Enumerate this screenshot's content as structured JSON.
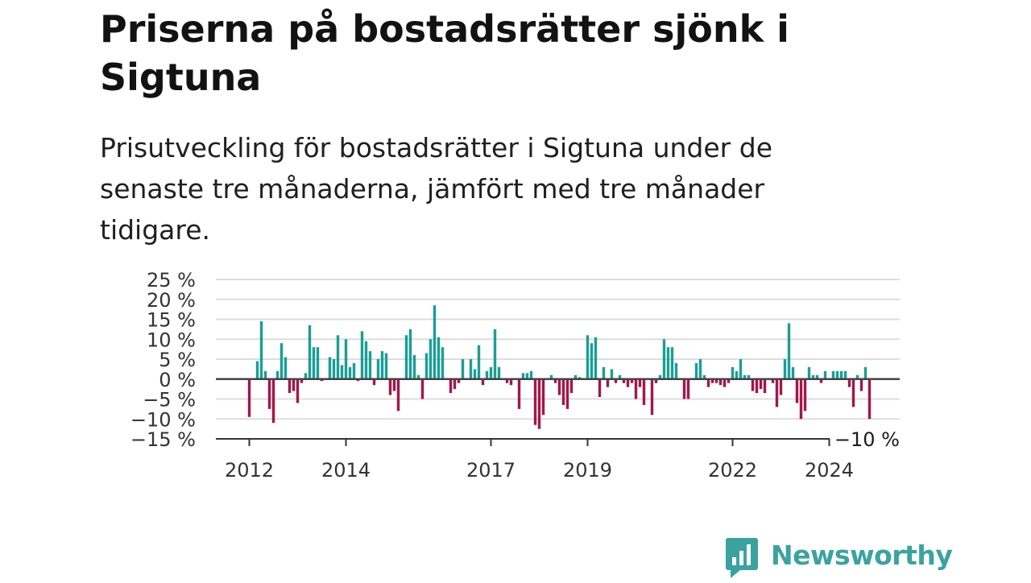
{
  "title": "Priserna på bostadsrätter sjönk i Sigtuna",
  "subtitle": "Prisutveckling för bostadsrätter i Sigtuna under de senaste tre månaderna, jämfört med tre månader tidigare.",
  "brand": {
    "name": "Newsworthy",
    "color": "#3aa3a0"
  },
  "chart_data": {
    "type": "bar",
    "x_unit": "month",
    "start": "2012-01",
    "ylim": [
      -15,
      25
    ],
    "y_ticks": [
      25,
      20,
      15,
      10,
      5,
      0,
      -5,
      -10,
      -15
    ],
    "y_tick_labels": [
      "25 %",
      "20 %",
      "15 %",
      "10 %",
      "5 %",
      "0 %",
      "−5 %",
      "−10 %",
      "−15 %"
    ],
    "x_ticks": [
      {
        "label": "2012",
        "month": "2012-01"
      },
      {
        "label": "2014",
        "month": "2014-01"
      },
      {
        "label": "2017",
        "month": "2017-01"
      },
      {
        "label": "2019",
        "month": "2019-01"
      },
      {
        "label": "2022",
        "month": "2022-01"
      },
      {
        "label": "2024",
        "month": "2024-01"
      }
    ],
    "grid": true,
    "colors": {
      "positive": "#1a9e96",
      "negative": "#a3164a",
      "zero_line": "#444444",
      "grid": "#dddddd"
    },
    "last_value_label": "−10 %",
    "values": [
      -9.5,
      0,
      4.5,
      14.5,
      2,
      -7.5,
      -11,
      2,
      9,
      5.5,
      -3.5,
      -3,
      -6,
      -1,
      1.5,
      13.5,
      8,
      8,
      -0.5,
      0,
      5.5,
      5,
      11,
      3.5,
      10,
      3,
      4,
      -0.5,
      12,
      9.5,
      7,
      -1.5,
      5,
      7,
      6.5,
      -4,
      -3,
      -8,
      0,
      11,
      12.5,
      6,
      1,
      -5,
      6.5,
      10,
      18.5,
      10.5,
      8,
      0,
      -3.5,
      -2.5,
      -1,
      5,
      0,
      5,
      2.5,
      8.5,
      -1.5,
      2,
      3,
      12.5,
      3,
      0,
      -1,
      -1.5,
      0,
      -7.5,
      1.5,
      1.5,
      2,
      -11.5,
      -12.5,
      -9,
      0,
      1,
      -1,
      -4,
      -6.5,
      -7.5,
      -3.5,
      1,
      0.5,
      0,
      11,
      9,
      10.5,
      -4.5,
      3,
      -2,
      2.5,
      -1,
      1,
      -1,
      -2,
      -1,
      -5,
      -2,
      -6.5,
      0,
      -9,
      -1,
      1,
      10,
      8,
      8,
      4,
      0,
      -5,
      -5,
      0,
      4,
      5,
      1,
      -2,
      -1,
      -1,
      -1.5,
      -2,
      -1,
      3,
      2,
      5,
      1,
      1,
      -3,
      -3.5,
      -2.5,
      -3.5,
      0,
      -1,
      -7,
      -4,
      5,
      14,
      3,
      -6,
      -10,
      -8,
      3,
      1,
      1,
      -1,
      2,
      0,
      2,
      2,
      2,
      2,
      -2,
      -7,
      1,
      -3,
      3,
      -10
    ]
  }
}
